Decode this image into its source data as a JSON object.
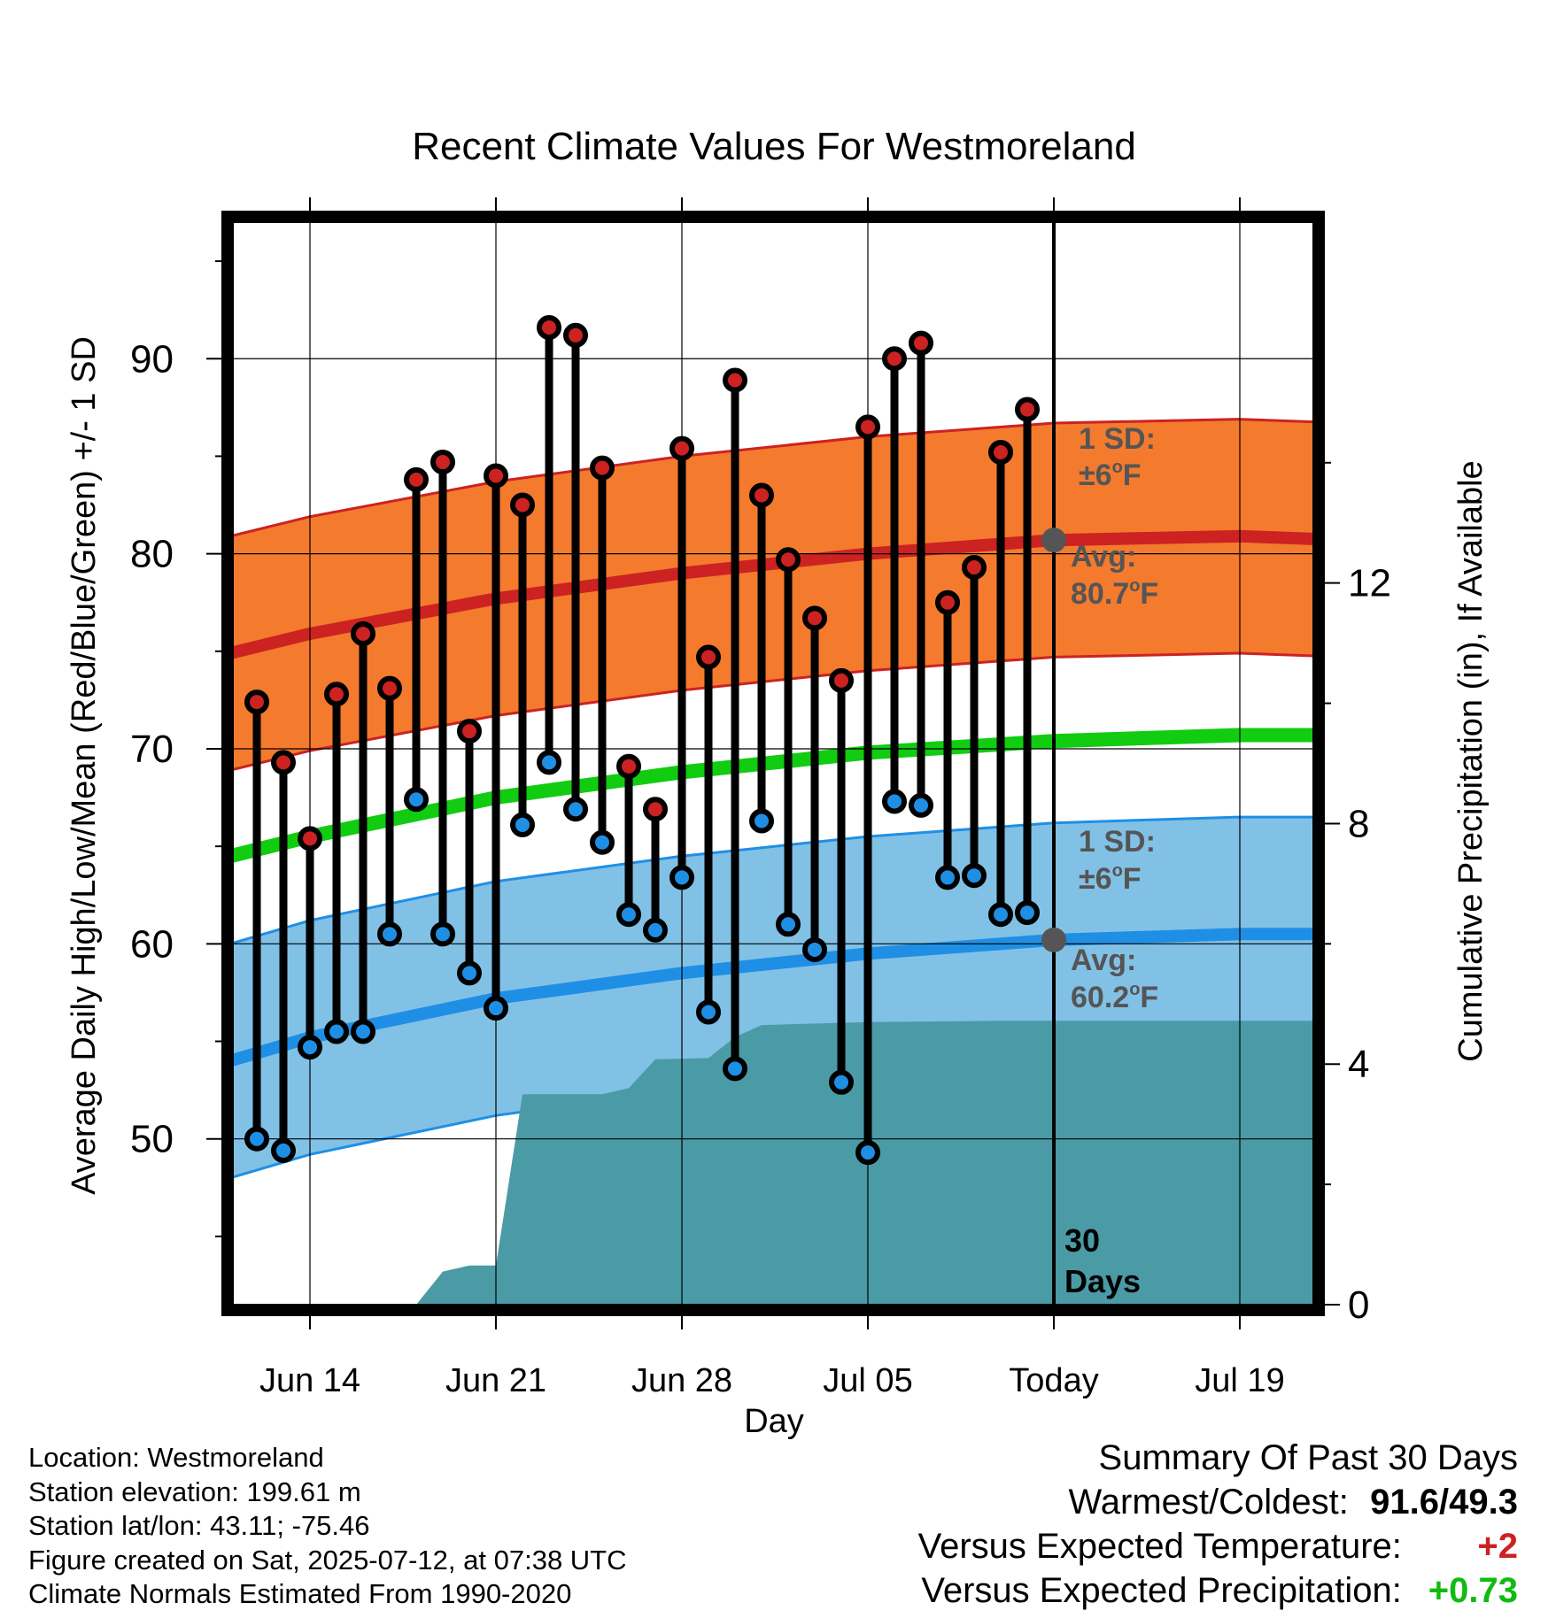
{
  "chart_data": {
    "type": "line",
    "title": "Recent Climate Values For Westmoreland",
    "xlabel": "Day",
    "ylabel": "Average Daily High/Low/Mean (Red/Blue/Green) +/- 1 SD",
    "y2label": "Cumulative Precipitation (in), If Available",
    "ylim": [
      41.5,
      97
    ],
    "y2lim": [
      0,
      18
    ],
    "yticks": [
      "50",
      "60",
      "70",
      "80",
      "90"
    ],
    "y2ticks": [
      "0",
      "4",
      "8",
      "12"
    ],
    "xticks": [
      "Jun 14",
      "Jun 21",
      "Jun 28",
      "Jul 05",
      "Today",
      "Jul 19"
    ],
    "days": [
      "Jun 12",
      "Jun 13",
      "Jun 14",
      "Jun 15",
      "Jun 16",
      "Jun 17",
      "Jun 18",
      "Jun 19",
      "Jun 20",
      "Jun 21",
      "Jun 22",
      "Jun 23",
      "Jun 24",
      "Jun 25",
      "Jun 26",
      "Jun 27",
      "Jun 28",
      "Jun 29",
      "Jun 30",
      "Jul 01",
      "Jul 02",
      "Jul 03",
      "Jul 04",
      "Jul 05",
      "Jul 06",
      "Jul 07",
      "Jul 08",
      "Jul 09",
      "Jul 10",
      "Jul 11"
    ],
    "series": [
      {
        "name": "Daily High",
        "color": "#cc2222",
        "values": [
          72.4,
          69.3,
          65.4,
          72.8,
          75.9,
          73.1,
          83.8,
          84.7,
          70.9,
          84.0,
          82.5,
          91.6,
          91.2,
          84.4,
          69.1,
          66.9,
          85.4,
          74.7,
          88.9,
          83.0,
          79.7,
          76.7,
          73.5,
          86.5,
          90.0,
          90.8,
          77.5,
          79.3,
          85.2,
          87.4
        ]
      },
      {
        "name": "Daily Low",
        "color": "#1f8fe5",
        "values": [
          50.0,
          49.4,
          54.7,
          55.5,
          55.5,
          60.5,
          67.4,
          60.5,
          58.5,
          56.7,
          66.1,
          69.3,
          66.9,
          65.2,
          61.5,
          60.7,
          63.4,
          56.5,
          53.6,
          66.3,
          61.0,
          59.7,
          52.9,
          49.3,
          67.3,
          67.1,
          63.4,
          63.5,
          61.5,
          61.6
        ]
      },
      {
        "name": "Normal High",
        "color": "#cc2222",
        "x": [
          "Jun 11",
          "Jun 14",
          "Jun 21",
          "Jun 28",
          "Jul 05",
          "Jul 12",
          "Jul 19",
          "Jul 23"
        ],
        "values": [
          74.9,
          75.9,
          77.7,
          79.0,
          80.0,
          80.7,
          80.9,
          80.7
        ]
      },
      {
        "name": "Normal Low",
        "color": "#1f8fe5",
        "x": [
          "Jun 11",
          "Jun 14",
          "Jun 21",
          "Jun 28",
          "Jul 05",
          "Jul 12",
          "Jul 19",
          "Jul 23"
        ],
        "values": [
          54.0,
          55.2,
          57.2,
          58.5,
          59.5,
          60.2,
          60.5,
          60.5
        ]
      },
      {
        "name": "Normal Mean",
        "color": "#11cc11",
        "x": [
          "Jun 11",
          "Jun 14",
          "Jun 21",
          "Jun 28",
          "Jul 05",
          "Jul 12",
          "Jul 19",
          "Jul 23"
        ],
        "values": [
          64.5,
          65.5,
          67.5,
          68.8,
          69.8,
          70.4,
          70.7,
          70.7
        ]
      },
      {
        "name": "Cumulative Precipitation",
        "color": "#4a9ba6",
        "x": [
          "Jun 11",
          "Jun 18",
          "Jun 19",
          "Jun 20",
          "Jun 21",
          "Jun 22",
          "Jun 25",
          "Jun 26",
          "Jun 27",
          "Jun 29",
          "Jun 30",
          "Jul 01",
          "Jul 05",
          "Jul 10",
          "Jul 23"
        ],
        "values": [
          0,
          0,
          0.55,
          0.65,
          0.65,
          3.5,
          3.5,
          3.6,
          4.08,
          4.1,
          4.45,
          4.65,
          4.7,
          4.72,
          4.72
        ]
      }
    ],
    "sd_band_width": 6,
    "annotations": {
      "high_sd_1": "1 SD:",
      "high_sd_2": "±6",
      "high_sd_unit": "F",
      "high_avg_1": "Avg:",
      "high_avg_2": "80.7",
      "high_avg_unit": "F",
      "low_sd_1": "1 SD:",
      "low_sd_2": "±6",
      "low_sd_unit": "F",
      "low_avg_1": "Avg:",
      "low_avg_2": "60.2",
      "low_avg_unit": "F",
      "days_1": "30",
      "days_2": "Days",
      "degree": "o"
    },
    "colors": {
      "high_band": "#f47a2e",
      "low_band": "#82c1e6",
      "normal_high": "#cc2222",
      "normal_low": "#1f8fe5",
      "normal_mean": "#11cc11",
      "precip": "#4a9ba6",
      "avg_marker": "#555555"
    }
  },
  "footer": {
    "location": "Location: Westmoreland",
    "elevation": "Station elevation: 199.61 m",
    "latlon": "Station lat/lon: 43.11; -75.46",
    "created": "Figure created on Sat, 2025-07-12, at 07:38 UTC",
    "normals": "Climate Normals Estimated From 1990-2020"
  },
  "summary": {
    "title": "Summary Of Past 30 Days",
    "warm_cold_label": "Warmest/Coldest:",
    "warm_cold_value": "91.6/49.3",
    "temp_label": "Versus Expected Temperature:",
    "temp_value": "+2",
    "temp_color": "#cc2222",
    "precip_label": "Versus Expected Precipitation:",
    "precip_value": "+0.73",
    "precip_color": "#11bb11"
  }
}
